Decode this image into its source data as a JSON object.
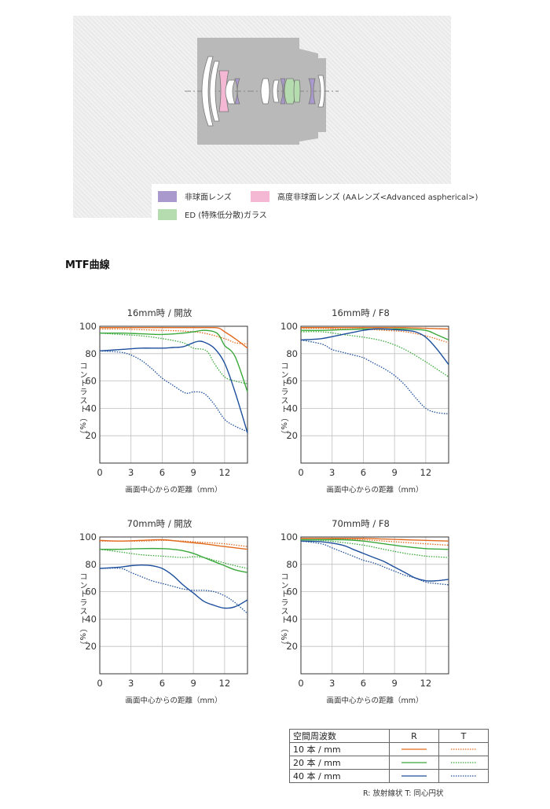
{
  "lens_legend": {
    "items": [
      {
        "label": "非球面レンズ",
        "color": "#a999cc"
      },
      {
        "label": "高度非球面レンズ (AAレンズ<Advanced aspherical>)",
        "color": "#f4b8d4"
      },
      {
        "label": "ED (特殊低分散)ガラス",
        "color": "#b5dcae"
      }
    ]
  },
  "section_title": "MTF曲線",
  "colors": {
    "10": "#e26a1f",
    "20": "#3aa83a",
    "40": "#1d4f9c"
  },
  "chart_data": [
    {
      "type": "line",
      "title": "16mm時 / 開放",
      "xlabel": "画面中心からの距離（mm）",
      "ylabel": "コントラスト（%）",
      "xlim": [
        0,
        14.2
      ],
      "ylim": [
        0,
        100
      ],
      "xticks": [
        "0",
        "3",
        "6",
        "9",
        "12"
      ],
      "yticks": [
        "100",
        "80",
        "60",
        "40",
        "20"
      ],
      "series": [
        {
          "freq": "10",
          "dir": "R",
          "x": [
            0,
            2,
            4,
            6,
            8,
            10,
            11,
            11.5,
            12,
            13,
            14.2
          ],
          "y": [
            99,
            99,
            99,
            99,
            99,
            99,
            99,
            98.5,
            96,
            91,
            84
          ]
        },
        {
          "freq": "10",
          "dir": "T",
          "x": [
            0,
            2,
            4,
            6,
            8,
            10,
            12,
            13,
            14.2
          ],
          "y": [
            98,
            98,
            97.5,
            97,
            96.5,
            95,
            91,
            88,
            87
          ]
        },
        {
          "freq": "20",
          "dir": "R",
          "x": [
            0,
            2,
            4,
            6,
            8,
            9,
            10,
            11,
            11.5,
            12,
            13,
            14.2
          ],
          "y": [
            95,
            95,
            94.5,
            94,
            95,
            96,
            97,
            96,
            93,
            86,
            78,
            52
          ]
        },
        {
          "freq": "20",
          "dir": "T",
          "x": [
            0,
            2,
            4,
            6,
            8,
            9,
            10,
            10.5,
            11,
            12,
            13,
            14.2
          ],
          "y": [
            95,
            94,
            93,
            91,
            88,
            84,
            83,
            80,
            73,
            63,
            60,
            58
          ]
        },
        {
          "freq": "40",
          "dir": "R",
          "x": [
            0,
            2,
            4,
            6,
            7,
            8,
            9,
            9.5,
            10,
            11,
            12,
            13,
            14.2
          ],
          "y": [
            82,
            83,
            84,
            84,
            84.5,
            85,
            88,
            89,
            88.5,
            84,
            73,
            52,
            22
          ]
        },
        {
          "freq": "40",
          "dir": "T",
          "x": [
            0,
            2,
            3,
            4,
            5,
            6,
            7,
            8,
            8.5,
            9,
            10,
            11,
            12,
            13,
            14.2
          ],
          "y": [
            82,
            81,
            79,
            75,
            69,
            62,
            57,
            52,
            51,
            52,
            51,
            43,
            32,
            27,
            23
          ]
        }
      ]
    },
    {
      "type": "line",
      "title": "16mm時 / F8",
      "xlabel": "画面中心からの距離（mm）",
      "ylabel": "コントラスト（%）",
      "xlim": [
        0,
        14.2
      ],
      "ylim": [
        0,
        100
      ],
      "xticks": [
        "0",
        "3",
        "6",
        "9",
        "12"
      ],
      "yticks": [
        "100",
        "80",
        "60",
        "40",
        "20"
      ],
      "series": [
        {
          "freq": "10",
          "dir": "R",
          "x": [
            0,
            2,
            4,
            6,
            8,
            10,
            12,
            14.2
          ],
          "y": [
            99,
            99,
            99,
            99,
            99,
            99,
            98.5,
            98
          ]
        },
        {
          "freq": "10",
          "dir": "T",
          "x": [
            0,
            2,
            4,
            6,
            8,
            10,
            12,
            14.2
          ],
          "y": [
            98.5,
            98.5,
            98,
            98,
            97,
            96,
            93,
            88
          ]
        },
        {
          "freq": "20",
          "dir": "R",
          "x": [
            0,
            2,
            4,
            6,
            8,
            10,
            12,
            13,
            14.2
          ],
          "y": [
            97,
            97,
            97.5,
            98,
            98,
            98,
            97,
            94,
            90
          ]
        },
        {
          "freq": "20",
          "dir": "T",
          "x": [
            0,
            2,
            4,
            6,
            8,
            10,
            12,
            13,
            14.2
          ],
          "y": [
            96,
            96,
            94,
            92,
            89,
            83,
            74,
            69,
            63
          ]
        },
        {
          "freq": "40",
          "dir": "R",
          "x": [
            0,
            2,
            4,
            6,
            7,
            8,
            9,
            10,
            11,
            12,
            13,
            14.2
          ],
          "y": [
            90,
            91,
            94,
            97,
            98,
            98,
            97.5,
            97,
            96,
            92,
            84,
            72
          ]
        },
        {
          "freq": "40",
          "dir": "T",
          "x": [
            0,
            2,
            3,
            4,
            5,
            6,
            7,
            8,
            9,
            10,
            11,
            12,
            13,
            14.2
          ],
          "y": [
            90,
            87,
            83,
            81,
            79,
            77,
            73,
            69,
            64,
            57,
            48,
            40,
            37,
            36
          ]
        }
      ]
    },
    {
      "type": "line",
      "title": "70mm時 / 開放",
      "xlabel": "画面中心からの距離（mm）",
      "ylabel": "コントラスト（%）",
      "xlim": [
        0,
        14.2
      ],
      "ylim": [
        0,
        100
      ],
      "xticks": [
        "0",
        "3",
        "6",
        "9",
        "12"
      ],
      "yticks": [
        "100",
        "80",
        "60",
        "40",
        "20"
      ],
      "series": [
        {
          "freq": "10",
          "dir": "R",
          "x": [
            0,
            2,
            4,
            6,
            8,
            10,
            12,
            14.2
          ],
          "y": [
            97.5,
            97,
            97.5,
            98,
            96.5,
            95,
            93,
            91
          ]
        },
        {
          "freq": "10",
          "dir": "T",
          "x": [
            0,
            2,
            4,
            6,
            8,
            10,
            12,
            14.2
          ],
          "y": [
            97,
            97,
            97,
            97.5,
            97,
            96,
            95,
            93
          ]
        },
        {
          "freq": "20",
          "dir": "R",
          "x": [
            0,
            2,
            4,
            6,
            7,
            8,
            9,
            10,
            11,
            12,
            13,
            14.2
          ],
          "y": [
            91,
            91,
            91.5,
            91.5,
            91,
            90,
            88,
            85,
            82,
            79,
            76,
            74
          ]
        },
        {
          "freq": "20",
          "dir": "T",
          "x": [
            0,
            2,
            4,
            6,
            8,
            9,
            10,
            11,
            12,
            13,
            14.2
          ],
          "y": [
            91,
            89,
            87,
            86,
            85,
            85.5,
            85,
            83,
            81,
            79,
            77
          ]
        },
        {
          "freq": "40",
          "dir": "R",
          "x": [
            0,
            1,
            2,
            3,
            4,
            5,
            6,
            7,
            8,
            9,
            10,
            11,
            12,
            13,
            14.2
          ],
          "y": [
            77,
            77.5,
            78,
            79,
            79.5,
            79,
            77,
            72,
            65,
            59,
            53,
            50,
            48,
            49,
            54
          ]
        },
        {
          "freq": "40",
          "dir": "T",
          "x": [
            0,
            2,
            3,
            4,
            5,
            6,
            7,
            8,
            9,
            10,
            11,
            12,
            13,
            14.2
          ],
          "y": [
            77,
            77,
            74,
            71,
            68,
            66,
            64,
            62,
            61,
            61,
            60,
            57,
            52,
            44
          ]
        }
      ]
    },
    {
      "type": "line",
      "title": "70mm時 / F8",
      "xlabel": "画面中心からの距離（mm）",
      "ylabel": "コントラスト（%）",
      "xlim": [
        0,
        14.2
      ],
      "ylim": [
        0,
        100
      ],
      "xticks": [
        "0",
        "3",
        "6",
        "9",
        "12"
      ],
      "yticks": [
        "100",
        "80",
        "60",
        "40",
        "20"
      ],
      "series": [
        {
          "freq": "10",
          "dir": "R",
          "x": [
            0,
            2,
            4,
            6,
            8,
            10,
            12,
            14.2
          ],
          "y": [
            99,
            99,
            99,
            99,
            98.5,
            98,
            97.5,
            97
          ]
        },
        {
          "freq": "10",
          "dir": "T",
          "x": [
            0,
            2,
            4,
            6,
            8,
            10,
            12,
            14.2
          ],
          "y": [
            99,
            99,
            98.5,
            98,
            97,
            96,
            95,
            94
          ]
        },
        {
          "freq": "20",
          "dir": "R",
          "x": [
            0,
            2,
            4,
            6,
            8,
            10,
            12,
            14.2
          ],
          "y": [
            98,
            98,
            98,
            97,
            95,
            93,
            91.5,
            91
          ]
        },
        {
          "freq": "20",
          "dir": "T",
          "x": [
            0,
            2,
            4,
            6,
            8,
            10,
            11,
            12,
            13,
            14.2
          ],
          "y": [
            98,
            97.5,
            96,
            94,
            91,
            88,
            87,
            86,
            85.5,
            85
          ]
        },
        {
          "freq": "40",
          "dir": "R",
          "x": [
            0,
            2,
            4,
            5,
            6,
            7,
            8,
            9,
            10,
            11,
            12,
            13,
            14.2
          ],
          "y": [
            97,
            96.5,
            94,
            91,
            88,
            85,
            82,
            78,
            74,
            70,
            68,
            68,
            69
          ]
        },
        {
          "freq": "40",
          "dir": "T",
          "x": [
            0,
            2,
            3,
            4,
            5,
            6,
            7,
            8,
            9,
            10,
            11,
            12,
            13,
            14.2
          ],
          "y": [
            97,
            95,
            92,
            89,
            86,
            83,
            81,
            78,
            75,
            72,
            70,
            67,
            66,
            65
          ]
        }
      ]
    }
  ],
  "key_table": {
    "header": [
      "空間周波数",
      "R",
      "T"
    ],
    "rows": [
      {
        "label": "10 本 / mm",
        "freq": "10"
      },
      {
        "label": "20 本 / mm",
        "freq": "20"
      },
      {
        "label": "40 本 / mm",
        "freq": "40"
      }
    ]
  },
  "note": "R: 放射線状 T: 同心円状"
}
